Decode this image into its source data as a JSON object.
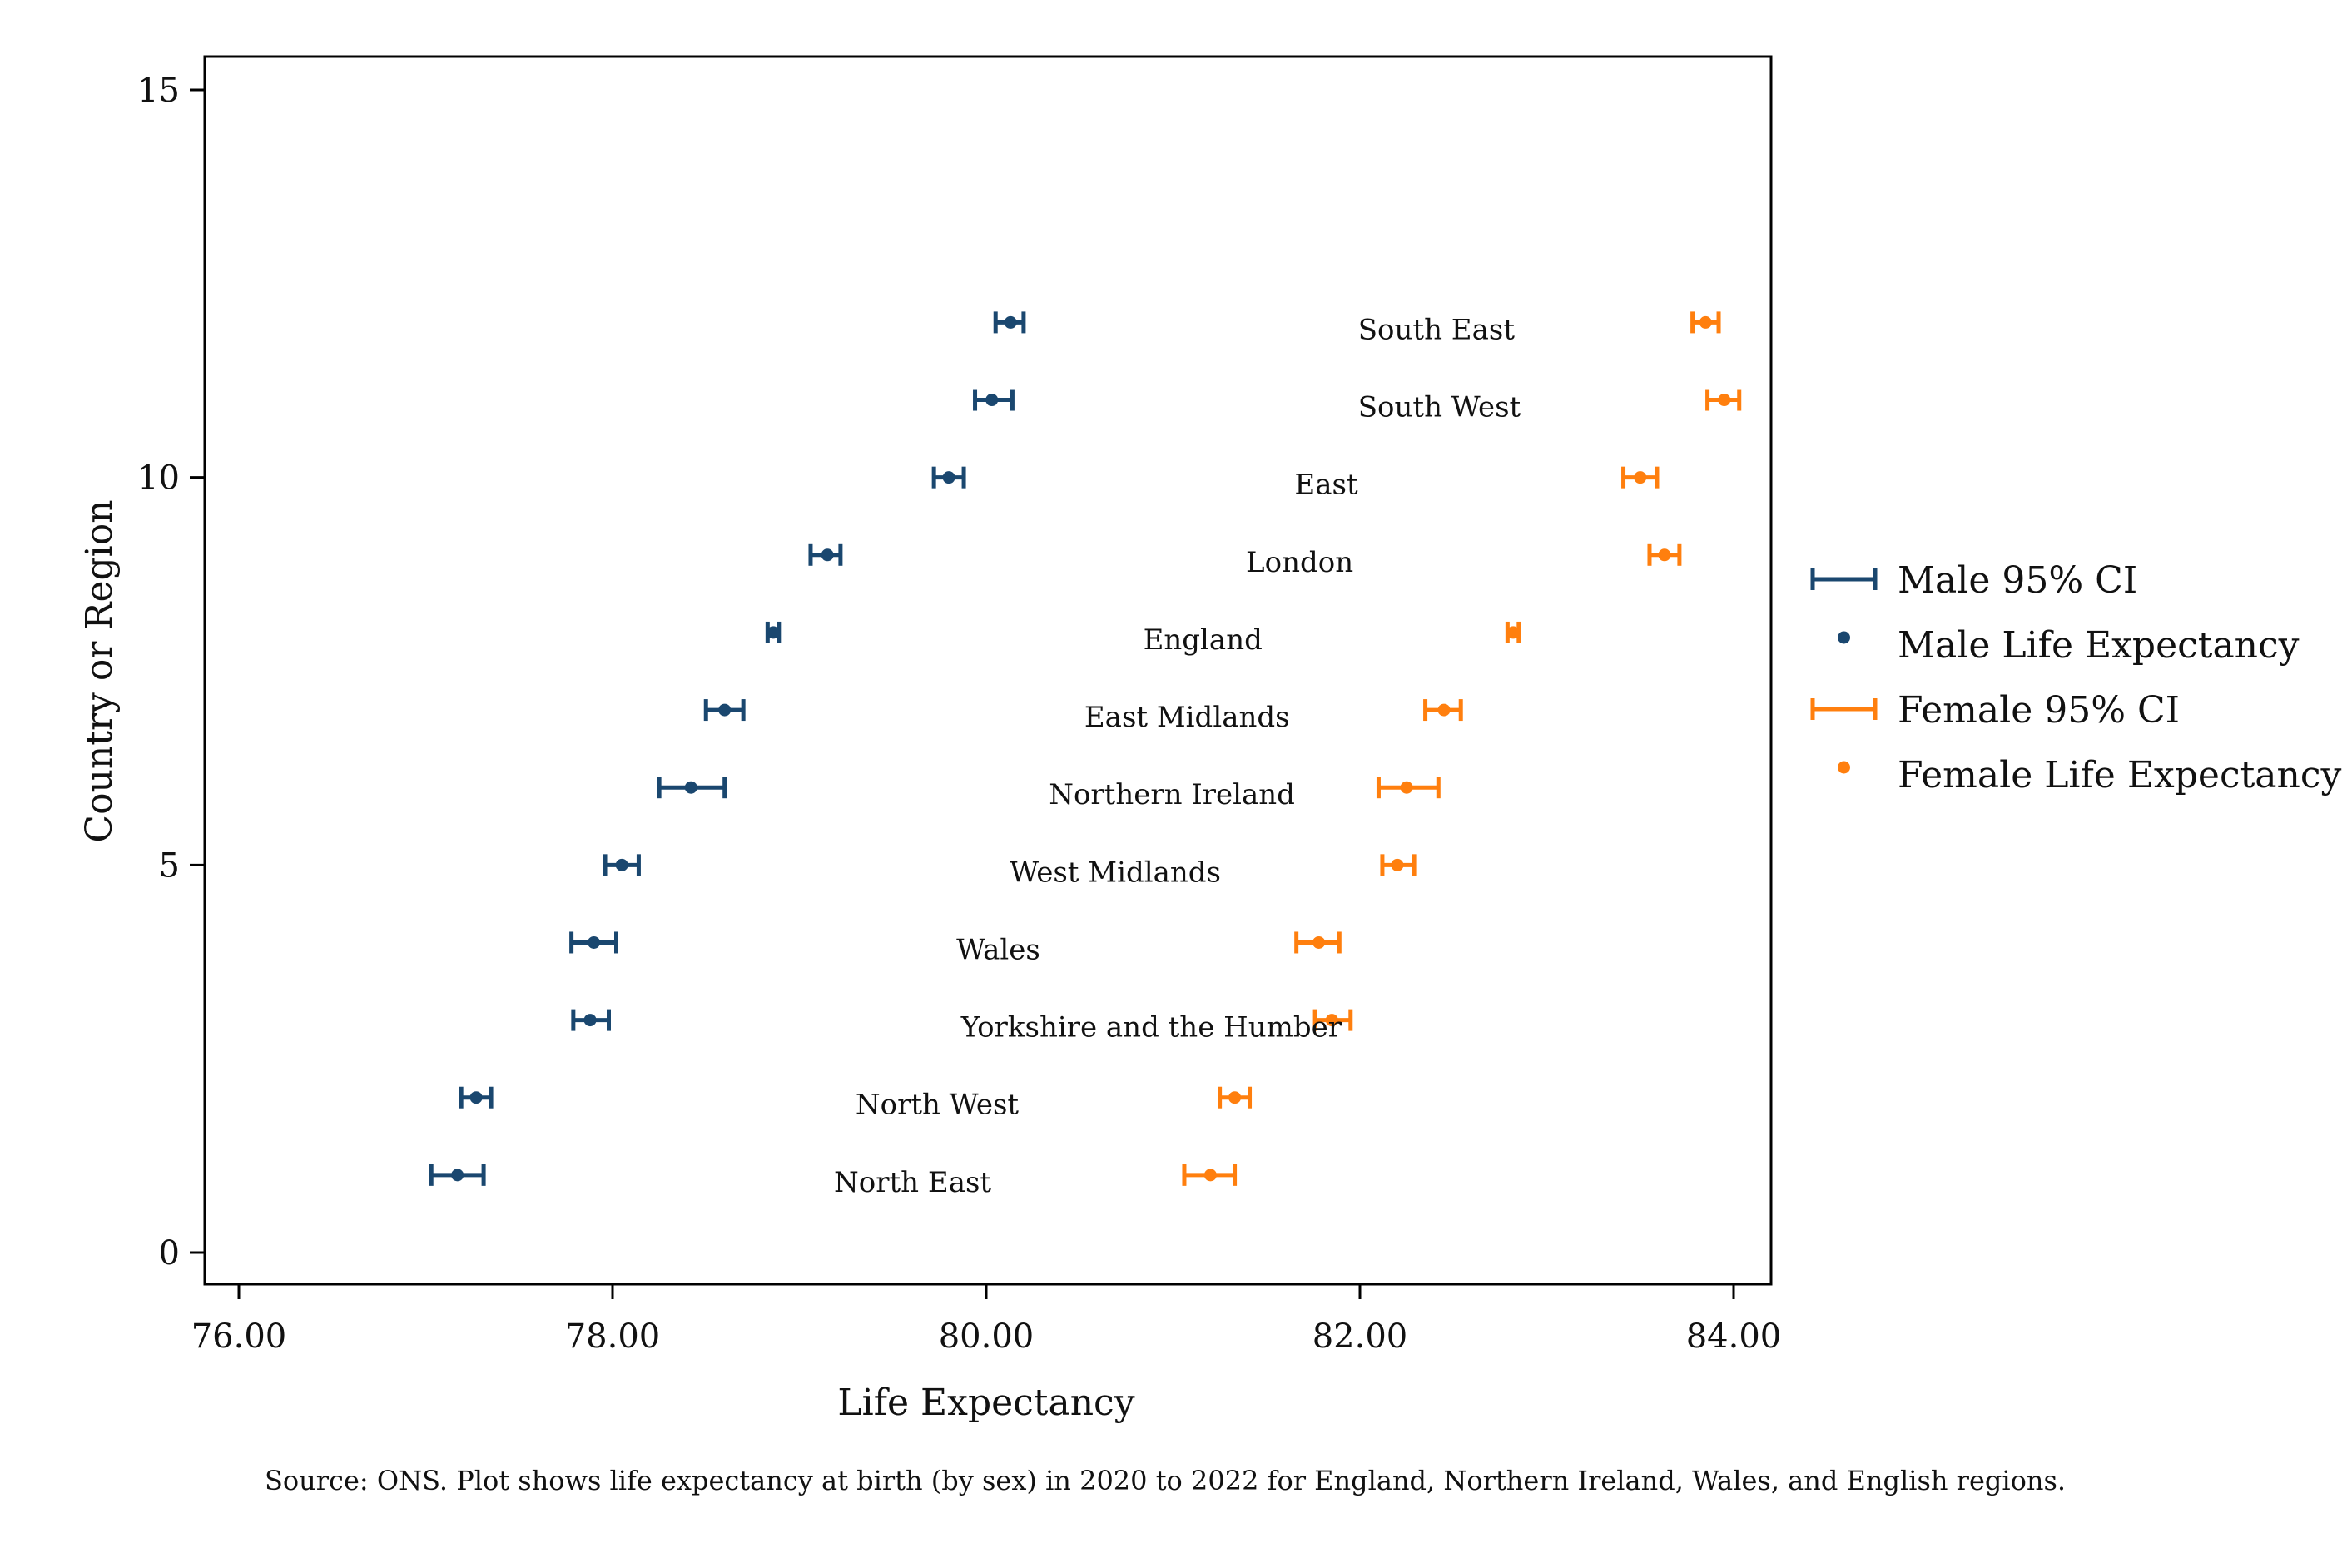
{
  "chart_data": {
    "type": "scatter",
    "xlabel": "Life Expectancy",
    "ylabel": "Country or Region",
    "xlim": [
      76,
      84
    ],
    "ylim": [
      0,
      15
    ],
    "x_ticks": [
      "76.00",
      "78.00",
      "80.00",
      "82.00",
      "84.00"
    ],
    "x_tick_values": [
      76,
      78,
      80,
      82,
      84
    ],
    "y_ticks": [
      "0",
      "5",
      "10",
      "15"
    ],
    "y_tick_values": [
      0,
      5,
      10,
      15
    ],
    "grid": false,
    "legend_position": "right",
    "legend": [
      "Male 95% CI",
      "Male Life Expectancy",
      "Female 95% CI",
      "Female Life Expectancy"
    ],
    "colors": {
      "male": "#1a476f",
      "female": "#ff7f0e"
    },
    "source": "Source: ONS. Plot shows life expectancy at birth (by sex) in 2020 to 2022 for England, Northern Ireland, Wales, and English regions.",
    "regions": [
      {
        "name": "South East",
        "y": 12,
        "male": 80.13,
        "male_lo": 80.05,
        "male_hi": 80.2,
        "female": 83.85,
        "female_lo": 83.78,
        "female_hi": 83.92
      },
      {
        "name": "South West",
        "y": 11,
        "male": 80.03,
        "male_lo": 79.94,
        "male_hi": 80.14,
        "female": 83.95,
        "female_lo": 83.86,
        "female_hi": 84.03
      },
      {
        "name": "East",
        "y": 10,
        "male": 79.8,
        "male_lo": 79.72,
        "male_hi": 79.88,
        "female": 83.5,
        "female_lo": 83.41,
        "female_hi": 83.59
      },
      {
        "name": "London",
        "y": 9,
        "male": 79.15,
        "male_lo": 79.06,
        "male_hi": 79.22,
        "female": 83.63,
        "female_lo": 83.55,
        "female_hi": 83.71
      },
      {
        "name": "England",
        "y": 8,
        "male": 78.86,
        "male_lo": 78.83,
        "male_hi": 78.89,
        "female": 82.82,
        "female_lo": 82.79,
        "female_hi": 82.85
      },
      {
        "name": "East Midlands",
        "y": 7,
        "male": 78.6,
        "male_lo": 78.5,
        "male_hi": 78.7,
        "female": 82.45,
        "female_lo": 82.35,
        "female_hi": 82.54
      },
      {
        "name": "Northern Ireland",
        "y": 6,
        "male": 78.42,
        "male_lo": 78.25,
        "male_hi": 78.6,
        "female": 82.25,
        "female_lo": 82.1,
        "female_hi": 82.42
      },
      {
        "name": "West Midlands",
        "y": 5,
        "male": 78.05,
        "male_lo": 77.96,
        "male_hi": 78.14,
        "female": 82.2,
        "female_lo": 82.12,
        "female_hi": 82.29
      },
      {
        "name": "Wales",
        "y": 4,
        "male": 77.9,
        "male_lo": 77.78,
        "male_hi": 78.02,
        "female": 81.78,
        "female_lo": 81.66,
        "female_hi": 81.89
      },
      {
        "name": "Yorkshire and the Humber",
        "y": 3,
        "male": 77.88,
        "male_lo": 77.79,
        "male_hi": 77.98,
        "female": 81.85,
        "female_lo": 81.76,
        "female_hi": 81.95
      },
      {
        "name": "North West",
        "y": 2,
        "male": 77.27,
        "male_lo": 77.19,
        "male_hi": 77.35,
        "female": 81.33,
        "female_lo": 81.25,
        "female_hi": 81.41
      },
      {
        "name": "North East",
        "y": 1,
        "male": 77.17,
        "male_lo": 77.03,
        "male_hi": 77.31,
        "female": 81.2,
        "female_lo": 81.06,
        "female_hi": 81.33
      }
    ]
  }
}
